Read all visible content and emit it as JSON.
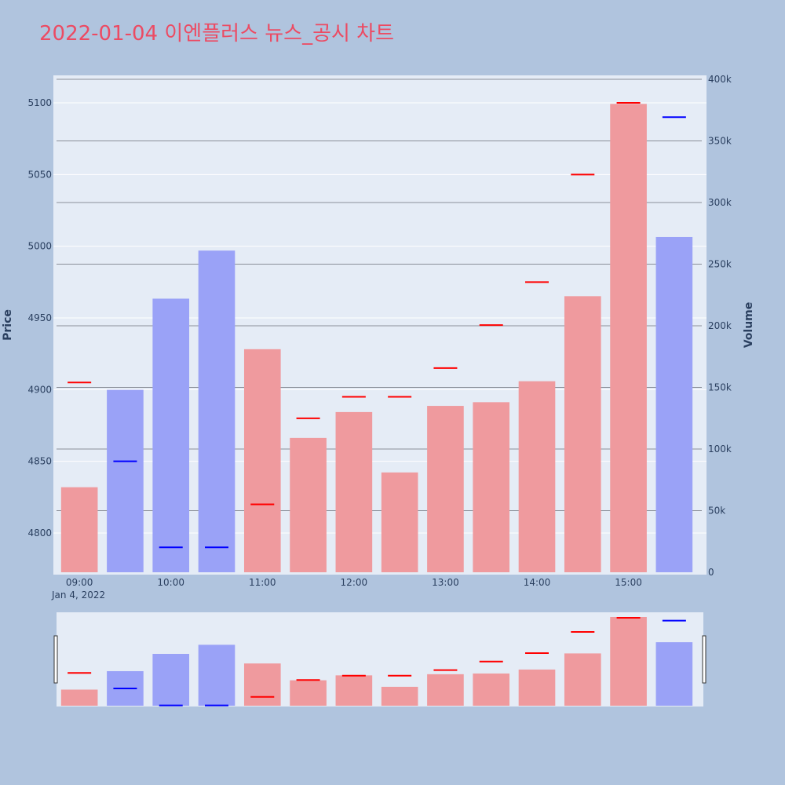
{
  "title": "2022-01-04 이엔플러스 뉴스_공시 차트",
  "colors": {
    "background": "#b0c4de",
    "plot_background": "#e5ecf6",
    "up_bar": "#ef9a9e",
    "down_bar": "#9aa2f7",
    "up_tick": "#ff0000",
    "down_tick": "#0000ff",
    "title": "#ec4b63"
  },
  "chart_data": {
    "type": "bar",
    "y_left_label": "Price",
    "y_right_label": "Volume",
    "date_label": "Jan 4, 2022",
    "x_tick_labels": [
      "09:00",
      "10:00",
      "11:00",
      "12:00",
      "13:00",
      "14:00",
      "15:00"
    ],
    "y_left_ticks": [
      4800,
      4850,
      4900,
      4950,
      5000,
      5050,
      5100
    ],
    "y_right_ticks": [
      0,
      50000,
      100000,
      150000,
      200000,
      250000,
      300000,
      350000,
      400000
    ],
    "y_right_tick_labels": [
      "0",
      "50k",
      "100k",
      "150k",
      "200k",
      "250k",
      "300k",
      "350k",
      "400k"
    ],
    "price_range": [
      4772,
      5120
    ],
    "volume_range": [
      0,
      400000
    ],
    "x_categories": [
      "09:00",
      "09:30",
      "10:00",
      "10:30",
      "11:00",
      "11:30",
      "12:00",
      "12:30",
      "13:00",
      "13:30",
      "14:00",
      "14:30",
      "15:00",
      "15:30"
    ],
    "volume": [
      69000,
      148000,
      222000,
      261000,
      181000,
      109000,
      130000,
      81000,
      135000,
      138000,
      155000,
      224000,
      380000,
      272000
    ],
    "price": [
      4905,
      4850,
      4790,
      4790,
      4820,
      4880,
      4895,
      4895,
      4915,
      4945,
      4975,
      5050,
      5100,
      5090
    ],
    "direction": [
      "up",
      "down",
      "down",
      "down",
      "up",
      "up",
      "up",
      "up",
      "up",
      "up",
      "up",
      "up",
      "up",
      "down"
    ]
  }
}
